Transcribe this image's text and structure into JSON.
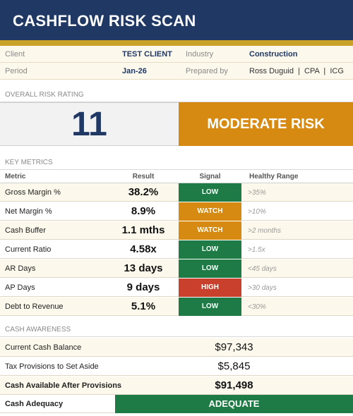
{
  "header": {
    "title": "CASHFLOW RISK SCAN"
  },
  "info": {
    "client_label": "Client",
    "client_value": "TEST CLIENT",
    "industry_label": "Industry",
    "industry_value": "Construction",
    "period_label": "Period",
    "period_value": "Jan-26",
    "prepared_label": "Prepared by",
    "prepared_value": "Ross Duguid  |  CPA  |  ICG"
  },
  "overall": {
    "section_label": "OVERALL RISK RATING",
    "score": "11",
    "rating": "MODERATE RISK"
  },
  "metrics": {
    "section_label": "KEY METRICS",
    "columns": {
      "metric": "Metric",
      "result": "Result",
      "signal": "Signal",
      "range": "Healthy Range"
    },
    "rows": [
      {
        "metric": "Gross Margin %",
        "result": "38.2%",
        "signal": "LOW",
        "range": ">35%"
      },
      {
        "metric": "Net Margin %",
        "result": "8.9%",
        "signal": "WATCH",
        "range": ">10%"
      },
      {
        "metric": "Cash Buffer",
        "result": "1.1 mths",
        "signal": "WATCH",
        "range": ">2 months"
      },
      {
        "metric": "Current Ratio",
        "result": "4.58x",
        "signal": "LOW",
        "range": ">1.5x"
      },
      {
        "metric": "AR Days",
        "result": "13 days",
        "signal": "LOW",
        "range": "<45 days"
      },
      {
        "metric": "AP Days",
        "result": "9 days",
        "signal": "HIGH",
        "range": ">30 days"
      },
      {
        "metric": "Debt to Revenue",
        "result": "5.1%",
        "signal": "LOW",
        "range": "<30%"
      }
    ]
  },
  "cash": {
    "section_label": "CASH AWARENESS",
    "current_label": "Current Cash Balance",
    "current_value": "$97,343",
    "tax_label": "Tax Provisions to Set Aside",
    "tax_value": "$5,845",
    "available_label": "Cash Available After Provisions",
    "available_value": "$91,498",
    "adequacy_label": "Cash Adequacy",
    "adequacy_value": "ADEQUATE"
  },
  "colors": {
    "navy": "#1f3864",
    "gold": "#c9a227",
    "low": "#1e7b45",
    "watch": "#d68a12",
    "high": "#c9412c"
  }
}
